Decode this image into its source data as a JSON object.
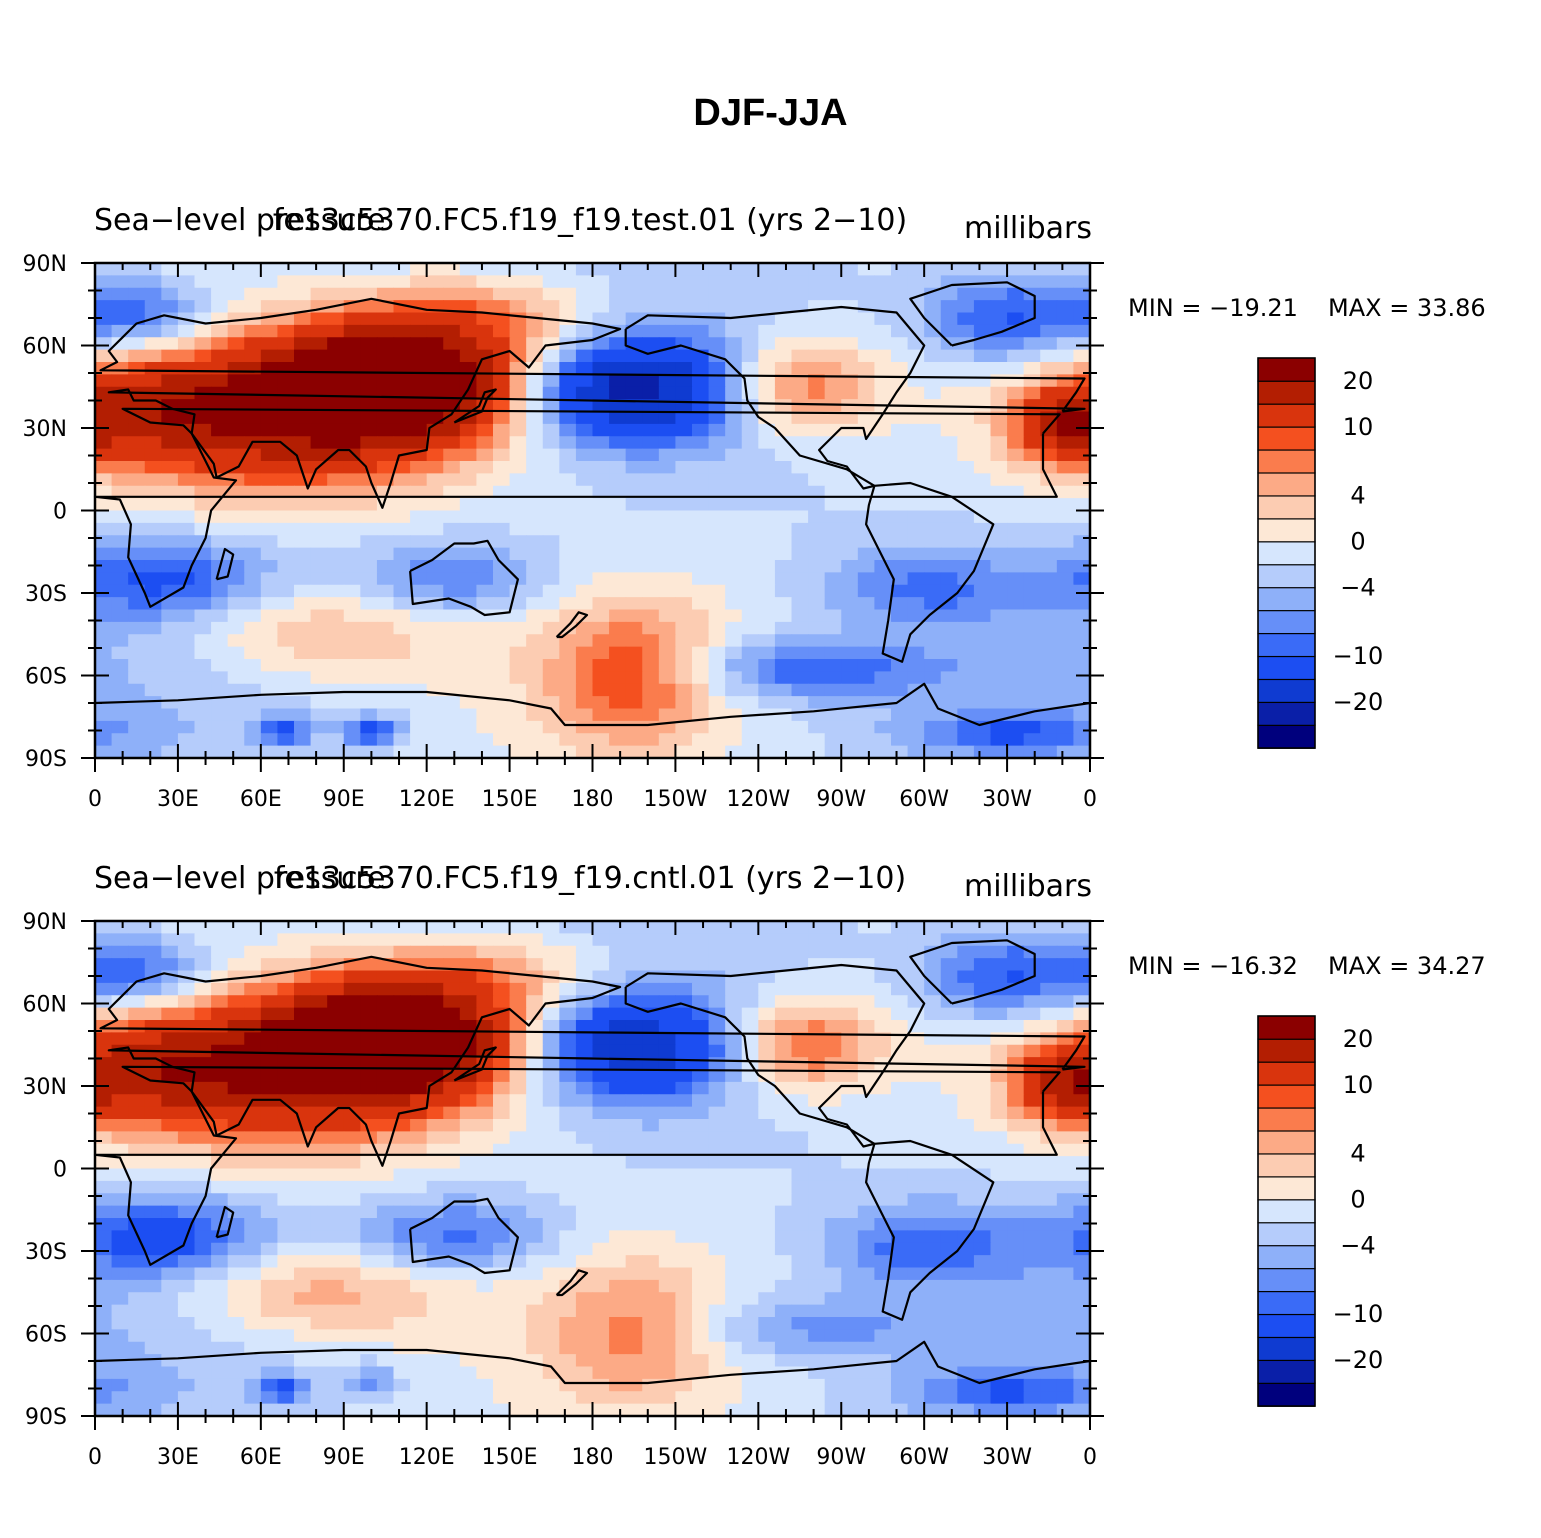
{
  "figure": {
    "title": "DJF-JJA"
  },
  "colormap": {
    "levels": [
      -25,
      -20,
      -15,
      -10,
      -8,
      -6,
      -4,
      -2,
      0,
      2,
      4,
      6,
      8,
      10,
      15,
      20,
      25
    ],
    "colors": [
      "#00007d",
      "#0a1fa8",
      "#0f3bd1",
      "#1c4ef2",
      "#3a6bf7",
      "#668ff8",
      "#8eb0f9",
      "#b5ccfb",
      "#d6e6fd",
      "#fde8d6",
      "#fcccb2",
      "#fcaa86",
      "#fa7c4d",
      "#f4501f",
      "#d9340d",
      "#b31e02",
      "#8b0000"
    ],
    "colorbar_labels": [
      "20",
      "10",
      "4",
      "0",
      "−4",
      "−10",
      "−20"
    ],
    "land_outline_color": "#000000"
  },
  "chart_data": [
    {
      "type": "heatmap",
      "title_left": "Sea−level pressure",
      "title_center": "fe13c5370.FC5.f19_f19.test.01 (yrs 2−10)",
      "units": "millibars",
      "min_label": "MIN = −19.21",
      "max_label": "MAX =   33.86",
      "min": -19.21,
      "max": 33.86,
      "x_ticklabels": [
        "0",
        "30E",
        "60E",
        "90E",
        "120E",
        "150E",
        "180",
        "150W",
        "120W",
        "90W",
        "60W",
        "30W",
        "0"
      ],
      "y_ticklabels": [
        "90N",
        "60N",
        "30N",
        "0",
        "30S",
        "60S",
        "90S"
      ],
      "lon_range": [
        0,
        360
      ],
      "lat_range": [
        -90,
        90
      ],
      "field_centers": [
        {
          "lon": 105,
          "lat": 47,
          "value": 32,
          "sx": 32,
          "sy": 14
        },
        {
          "lon": 70,
          "lat": 30,
          "value": 16,
          "sx": 50,
          "sy": 18
        },
        {
          "lon": 20,
          "lat": 38,
          "value": 10,
          "sx": 25,
          "sy": 12
        },
        {
          "lon": 140,
          "lat": 70,
          "value": 9,
          "sx": 35,
          "sy": 12
        },
        {
          "lon": 255,
          "lat": 45,
          "value": 10,
          "sx": 20,
          "sy": 12
        },
        {
          "lon": 350,
          "lat": 30,
          "value": 12,
          "sx": 12,
          "sy": 9
        },
        {
          "lon": 195,
          "lat": 44,
          "value": -19,
          "sx": 26,
          "sy": 13
        },
        {
          "lon": 330,
          "lat": 70,
          "value": -10,
          "sx": 22,
          "sy": 12
        },
        {
          "lon": 15,
          "lat": 72,
          "value": -9,
          "sx": 18,
          "sy": 9
        },
        {
          "lon": 25,
          "lat": -25,
          "value": -8,
          "sx": 25,
          "sy": 10
        },
        {
          "lon": 130,
          "lat": -25,
          "value": -7,
          "sx": 25,
          "sy": 10
        },
        {
          "lon": 300,
          "lat": -28,
          "value": -6,
          "sx": 25,
          "sy": 10
        },
        {
          "lon": 255,
          "lat": -58,
          "value": -8,
          "sx": 35,
          "sy": 8
        },
        {
          "lon": 195,
          "lat": -60,
          "value": 10,
          "sx": 22,
          "sy": 18
        },
        {
          "lon": 80,
          "lat": -45,
          "value": 6,
          "sx": 35,
          "sy": 12
        },
        {
          "lon": 100,
          "lat": -80,
          "value": -9,
          "sx": 8,
          "sy": 4
        },
        {
          "lon": 68,
          "lat": -80,
          "value": -8,
          "sx": 7,
          "sy": 4
        },
        {
          "lon": 330,
          "lat": -81,
          "value": -7,
          "sx": 25,
          "sy": 5
        }
      ],
      "base_value": -2
    },
    {
      "type": "heatmap",
      "title_left": "Sea−level pressure",
      "title_center": "fe13c5370.FC5.f19_f19.cntl.01 (yrs 2−10)",
      "units": "millibars",
      "min_label": "MIN = −16.32",
      "max_label": "MAX =   34.27",
      "min": -16.32,
      "max": 34.27,
      "x_ticklabels": [
        "0",
        "30E",
        "60E",
        "90E",
        "120E",
        "150E",
        "180",
        "150W",
        "120W",
        "90W",
        "60W",
        "30W",
        "0"
      ],
      "y_ticklabels": [
        "90N",
        "60N",
        "30N",
        "0",
        "30S",
        "60S",
        "90S"
      ],
      "lon_range": [
        0,
        360
      ],
      "lat_range": [
        -90,
        90
      ],
      "field_centers": [
        {
          "lon": 105,
          "lat": 47,
          "value": 32,
          "sx": 32,
          "sy": 14
        },
        {
          "lon": 70,
          "lat": 30,
          "value": 15,
          "sx": 50,
          "sy": 18
        },
        {
          "lon": 20,
          "lat": 38,
          "value": 10,
          "sx": 25,
          "sy": 12
        },
        {
          "lon": 140,
          "lat": 70,
          "value": 8,
          "sx": 35,
          "sy": 12
        },
        {
          "lon": 255,
          "lat": 45,
          "value": 11,
          "sx": 20,
          "sy": 12
        },
        {
          "lon": 350,
          "lat": 30,
          "value": 12,
          "sx": 12,
          "sy": 9
        },
        {
          "lon": 195,
          "lat": 44,
          "value": -16,
          "sx": 26,
          "sy": 13
        },
        {
          "lon": 330,
          "lat": 70,
          "value": -10,
          "sx": 22,
          "sy": 12
        },
        {
          "lon": 15,
          "lat": 72,
          "value": -9,
          "sx": 18,
          "sy": 9
        },
        {
          "lon": 25,
          "lat": -25,
          "value": -9,
          "sx": 25,
          "sy": 10
        },
        {
          "lon": 130,
          "lat": -25,
          "value": -8,
          "sx": 25,
          "sy": 10
        },
        {
          "lon": 300,
          "lat": -28,
          "value": -7,
          "sx": 25,
          "sy": 10
        },
        {
          "lon": 255,
          "lat": -58,
          "value": -5,
          "sx": 35,
          "sy": 8
        },
        {
          "lon": 195,
          "lat": -60,
          "value": 7,
          "sx": 22,
          "sy": 18
        },
        {
          "lon": 80,
          "lat": -45,
          "value": 7,
          "sx": 35,
          "sy": 12
        },
        {
          "lon": 68,
          "lat": -80,
          "value": -8,
          "sx": 7,
          "sy": 4
        },
        {
          "lon": 100,
          "lat": -77,
          "value": -6,
          "sx": 6,
          "sy": 4
        },
        {
          "lon": 330,
          "lat": -81,
          "value": -7,
          "sx": 25,
          "sy": 5
        }
      ],
      "base_value": -2
    }
  ]
}
